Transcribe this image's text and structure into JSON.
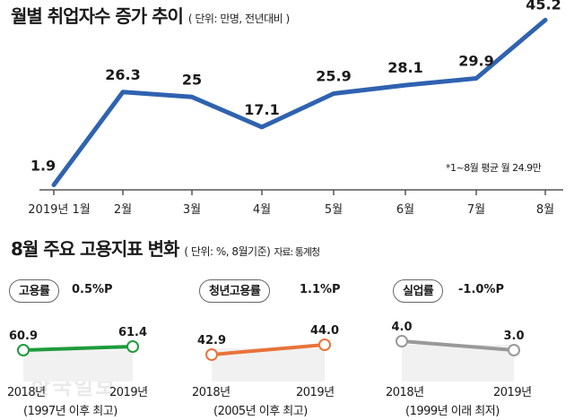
{
  "chart_data": [
    {
      "type": "line",
      "title": "월별 취업자수 증가 추이",
      "unit": "( 단위: 만명, 전년대비 )",
      "categories": [
        "2019년 1월",
        "2월",
        "3월",
        "4월",
        "5월",
        "6월",
        "7월",
        "8월"
      ],
      "values": [
        1.9,
        26.3,
        25,
        17.1,
        25.9,
        28.1,
        29.9,
        45.2
      ],
      "value_labels": [
        "1.9",
        "26.3",
        "25",
        "17.1",
        "25.9",
        "28.1",
        "29.9",
        "45.2"
      ],
      "ylim": [
        0,
        50
      ],
      "note": "*1~8월 평균 월 24.9만",
      "color": "#2f62b0"
    },
    {
      "type": "line",
      "label": "고용률",
      "delta": "0.5%P",
      "categories": [
        "2018년",
        "2019년"
      ],
      "values": [
        60.9,
        61.4
      ],
      "value_labels": [
        "60.9",
        "61.4"
      ],
      "note": "(1997년 이후 최고)",
      "color": "#1e9b3c"
    },
    {
      "type": "line",
      "label": "청년고용률",
      "delta": "1.1%P",
      "categories": [
        "2018년",
        "2019년"
      ],
      "values": [
        42.9,
        44.0
      ],
      "value_labels": [
        "42.9",
        "44.0"
      ],
      "note": "(2005년 이후 최고)",
      "color": "#e8733a"
    },
    {
      "type": "line",
      "label": "실업률",
      "delta": "-1.0%P",
      "categories": [
        "2018년",
        "2019년"
      ],
      "values": [
        4.0,
        3.0
      ],
      "value_labels": [
        "4.0",
        "3.0"
      ],
      "note": "(1999년 이래 최저)",
      "color": "#999999"
    }
  ],
  "section2": {
    "title": "8월 주요 고용지표 변화",
    "unit": "( 단위: %, 8월기준)",
    "source": "자료: 통계청"
  },
  "watermark": "한국일보"
}
